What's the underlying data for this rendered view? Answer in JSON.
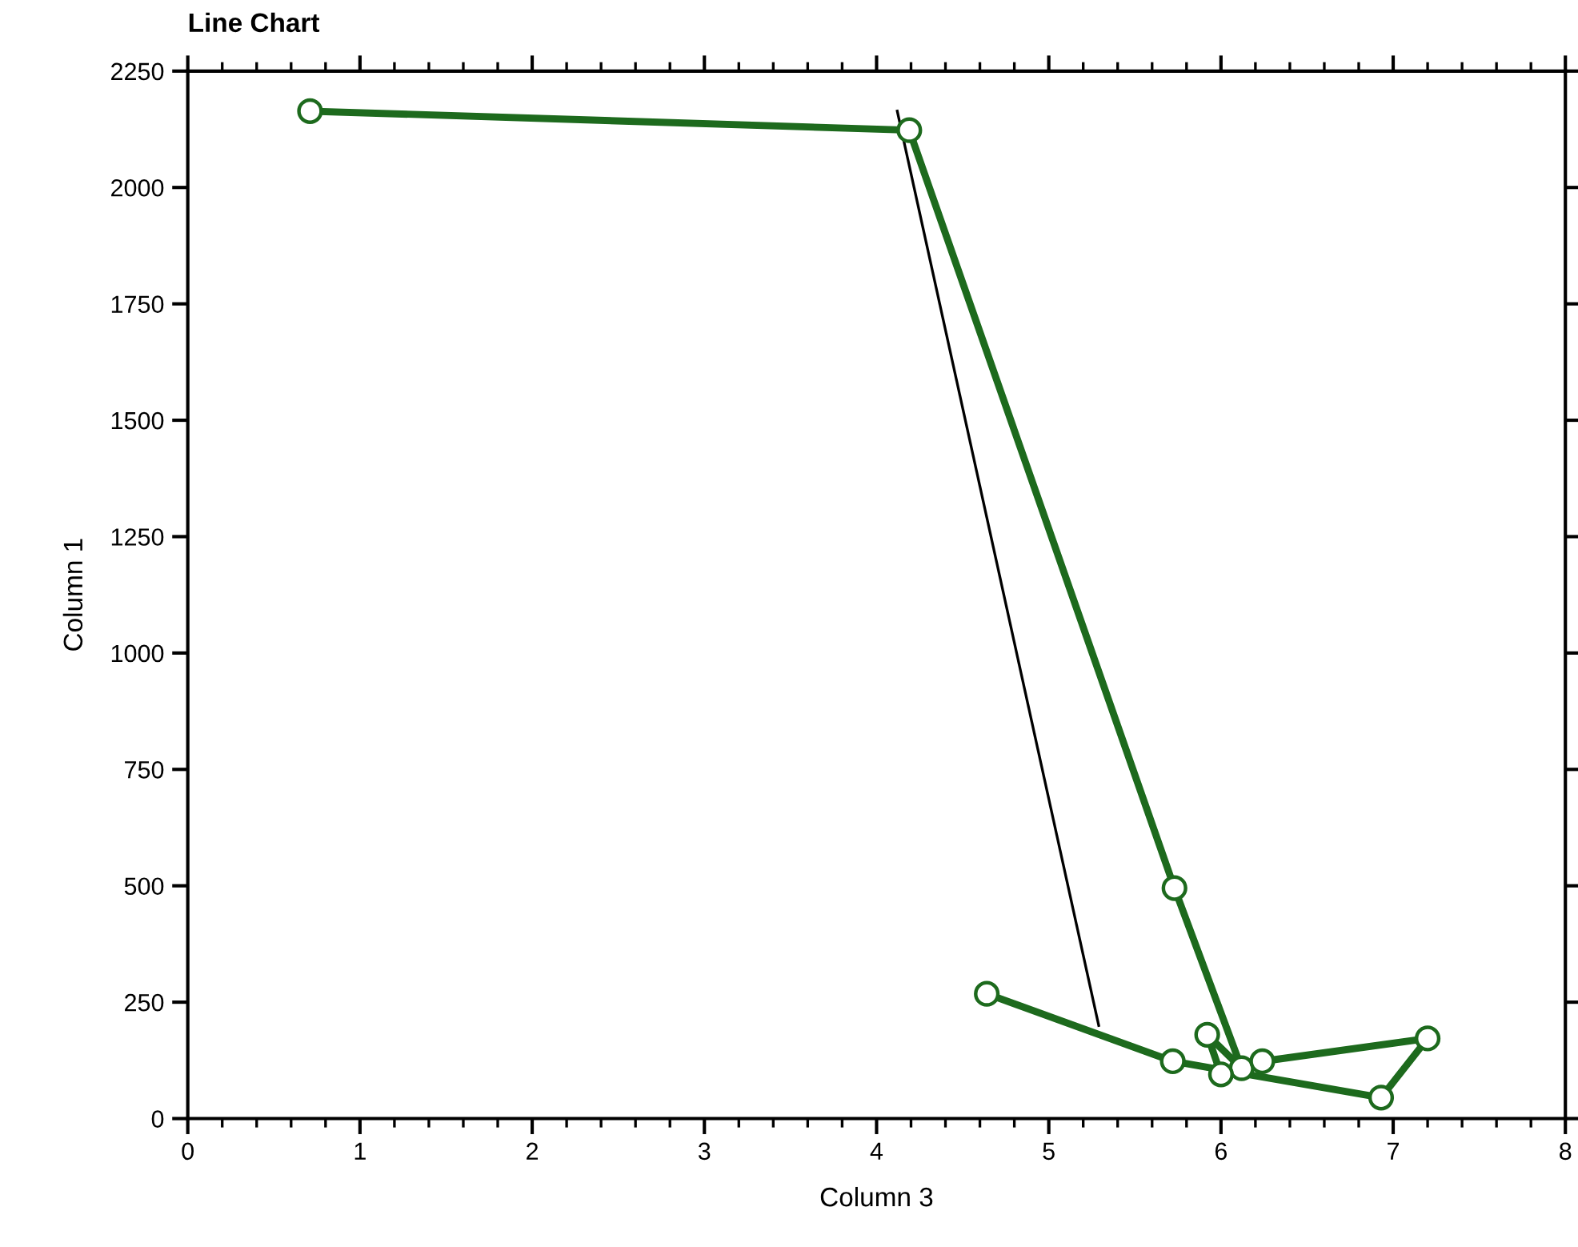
{
  "chart_data": {
    "type": "line",
    "title": "Line Chart",
    "xlabel": "Column 3",
    "ylabel": "Column 1",
    "series": [
      {
        "color": "#1d6a1d",
        "marker": "circle",
        "x": [
          0.71,
          4.19,
          5.73,
          6.12,
          5.92,
          6.0,
          6.24,
          7.2,
          6.93,
          5.72,
          4.64
        ],
        "values": [
          2164,
          2123,
          495,
          108,
          180,
          95,
          123,
          172,
          45,
          123,
          268
        ]
      },
      {
        "type": "line",
        "color": "#000000",
        "marker": "none",
        "x": [
          4.12,
          5.29
        ],
        "values": [
          2164,
          200
        ]
      }
    ],
    "xlim": [
      0,
      8
    ],
    "xticks": [
      0,
      1,
      2,
      3,
      4,
      5,
      6,
      7,
      8
    ],
    "ylim": [
      0,
      2250
    ],
    "yticks": [
      0,
      250,
      500,
      750,
      1000,
      1250,
      1500,
      1750,
      2000,
      2250
    ],
    "grid": false,
    "legend": false
  }
}
